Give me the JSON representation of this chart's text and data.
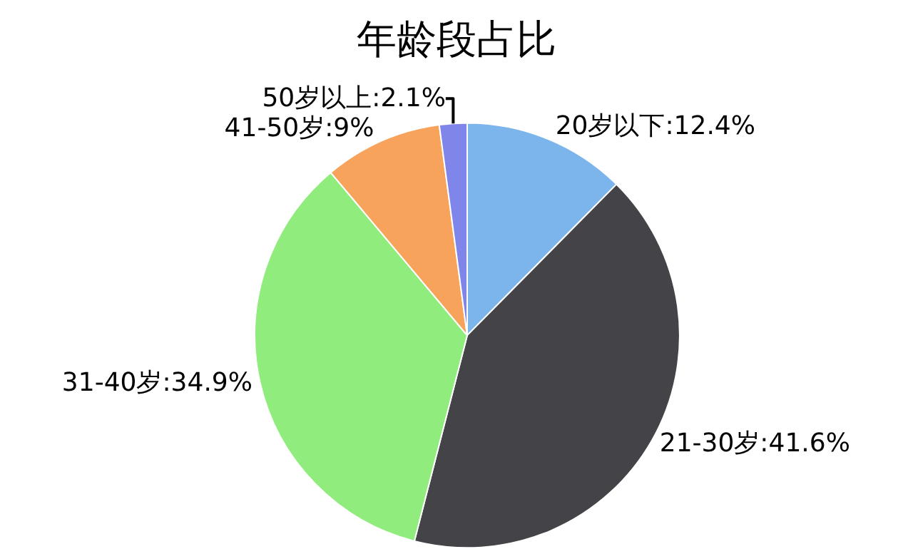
{
  "chart_data": {
    "type": "pie",
    "title": "年龄段占比",
    "categories": [
      "20岁以下",
      "21-30岁",
      "31-40岁",
      "41-50岁",
      "50岁以上"
    ],
    "values": [
      12.4,
      41.6,
      34.9,
      9,
      2.1
    ],
    "value_labels": [
      "12.4%",
      "41.6%",
      "34.9%",
      "9%",
      "2.1%"
    ],
    "colors": [
      "#7cb5ec",
      "#434348",
      "#90ed7d",
      "#f7a35c",
      "#8085e9"
    ],
    "legend": false
  }
}
